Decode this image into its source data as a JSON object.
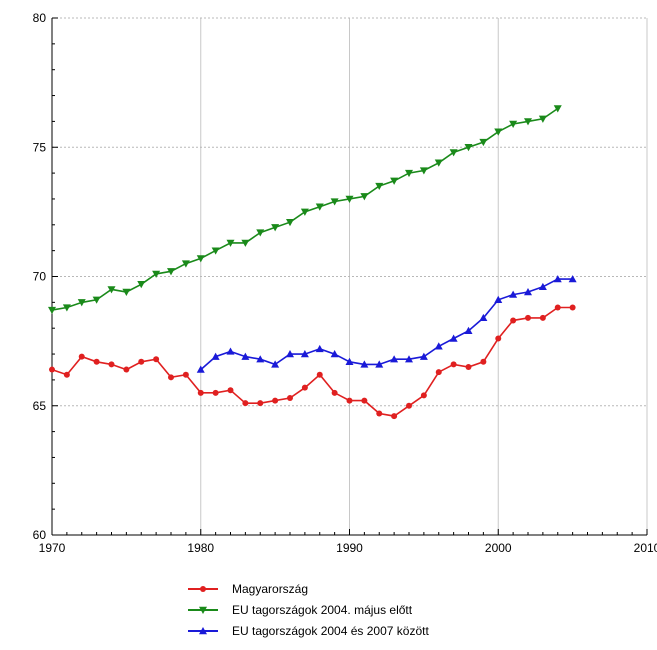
{
  "chart_data": {
    "type": "line",
    "title": "",
    "xlabel": "",
    "ylabel": "",
    "xlim": [
      1970,
      2010
    ],
    "ylim": [
      60,
      80
    ],
    "x_ticks": [
      1970,
      1980,
      1990,
      2000,
      2010
    ],
    "y_ticks": [
      60,
      65,
      70,
      75,
      80
    ],
    "x_tick_labels": [
      "1970",
      "1980",
      "1990",
      "2000",
      "2010"
    ],
    "y_tick_labels": [
      "60",
      "65",
      "70",
      "75",
      "80"
    ],
    "grid": true,
    "legend_position": "bottom",
    "series": [
      {
        "name": "Magyarország",
        "color": "#e02020",
        "marker": "circle",
        "x": [
          1970,
          1971,
          1972,
          1973,
          1974,
          1975,
          1976,
          1977,
          1978,
          1979,
          1980,
          1981,
          1982,
          1983,
          1984,
          1985,
          1986,
          1987,
          1988,
          1989,
          1990,
          1991,
          1992,
          1993,
          1994,
          1995,
          1996,
          1997,
          1998,
          1999,
          2000,
          2001,
          2002,
          2003,
          2004,
          2005
        ],
        "y": [
          66.4,
          66.2,
          66.9,
          66.7,
          66.6,
          66.4,
          66.7,
          66.8,
          66.1,
          66.2,
          65.5,
          65.5,
          65.6,
          65.1,
          65.1,
          65.2,
          65.3,
          65.7,
          66.2,
          65.5,
          65.2,
          65.2,
          64.7,
          64.6,
          65.0,
          65.4,
          66.3,
          66.6,
          66.5,
          66.7,
          67.6,
          68.3,
          68.4,
          68.4,
          68.8,
          68.8
        ]
      },
      {
        "name": "EU tagországok 2004. május előtt",
        "color": "#1a8a1a",
        "marker": "triangle-down",
        "x": [
          1970,
          1971,
          1972,
          1973,
          1974,
          1975,
          1976,
          1977,
          1978,
          1979,
          1980,
          1981,
          1982,
          1983,
          1984,
          1985,
          1986,
          1987,
          1988,
          1989,
          1990,
          1991,
          1992,
          1993,
          1994,
          1995,
          1996,
          1997,
          1998,
          1999,
          2000,
          2001,
          2002,
          2003,
          2004
        ],
        "y": [
          68.7,
          68.8,
          69.0,
          69.1,
          69.5,
          69.4,
          69.7,
          70.1,
          70.2,
          70.5,
          70.7,
          71.0,
          71.3,
          71.3,
          71.7,
          71.9,
          72.1,
          72.5,
          72.7,
          72.9,
          73.0,
          73.1,
          73.5,
          73.7,
          74.0,
          74.1,
          74.4,
          74.8,
          75.0,
          75.2,
          75.6,
          75.9,
          76.0,
          76.1,
          76.5
        ]
      },
      {
        "name": "EU tagországok 2004 és 2007 között",
        "color": "#1a1ad8",
        "marker": "triangle-up",
        "x": [
          1980,
          1981,
          1982,
          1983,
          1984,
          1985,
          1986,
          1987,
          1988,
          1989,
          1990,
          1991,
          1992,
          1993,
          1994,
          1995,
          1996,
          1997,
          1998,
          1999,
          2000,
          2001,
          2002,
          2003,
          2004,
          2005
        ],
        "y": [
          66.4,
          66.9,
          67.1,
          66.9,
          66.8,
          66.6,
          67.0,
          67.0,
          67.2,
          67.0,
          66.7,
          66.6,
          66.6,
          66.8,
          66.8,
          66.9,
          67.3,
          67.6,
          67.9,
          68.4,
          69.1,
          69.3,
          69.4,
          69.6,
          69.9,
          69.9
        ]
      }
    ]
  }
}
